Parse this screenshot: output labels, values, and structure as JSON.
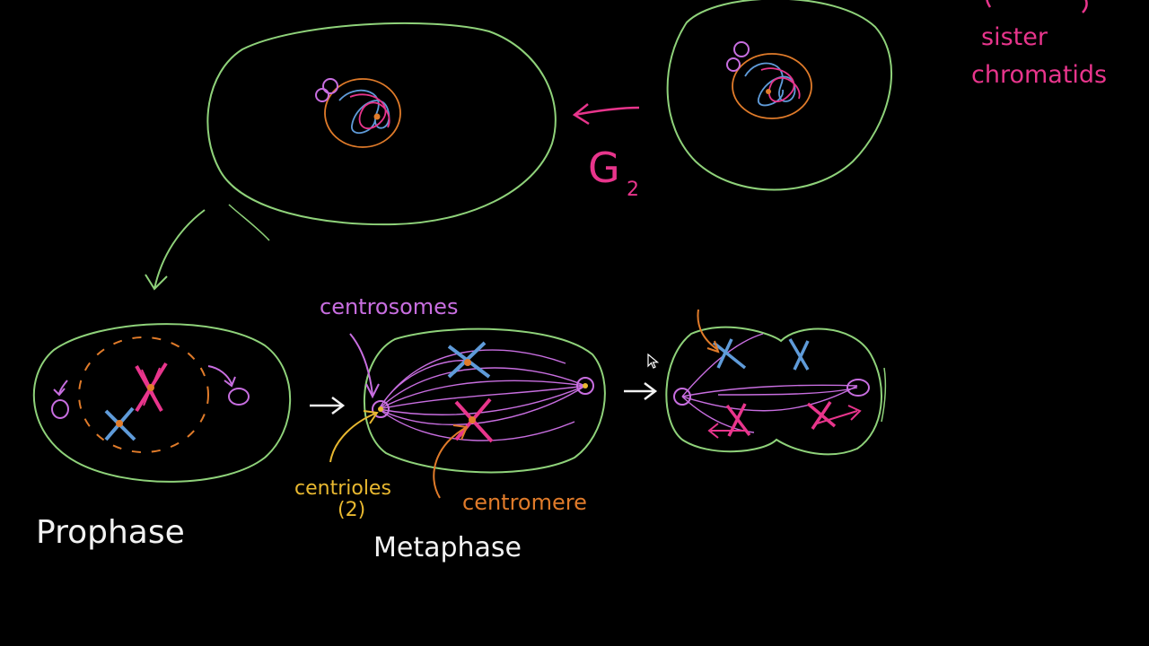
{
  "labels": {
    "sister_chromatids_line1": "sister",
    "sister_chromatids_line2": "chromatids",
    "g2": "G",
    "g2_sub": "2",
    "centrosomes": "centrosomes",
    "centrioles": "centrioles",
    "centrioles_count": "(2)",
    "centromere": "centromere",
    "prophase": "Prophase",
    "metaphase": "Metaphase"
  },
  "colors": {
    "background": "#000000",
    "cell_membrane": "#8fd27a",
    "magenta": "#e8358c",
    "violet": "#c86ee0",
    "blue": "#5f9bd9",
    "orange": "#e07b2a",
    "yellow": "#e8b830",
    "white": "#f2f2f2"
  },
  "icons": {
    "cursor": "arrow-cursor-icon"
  }
}
